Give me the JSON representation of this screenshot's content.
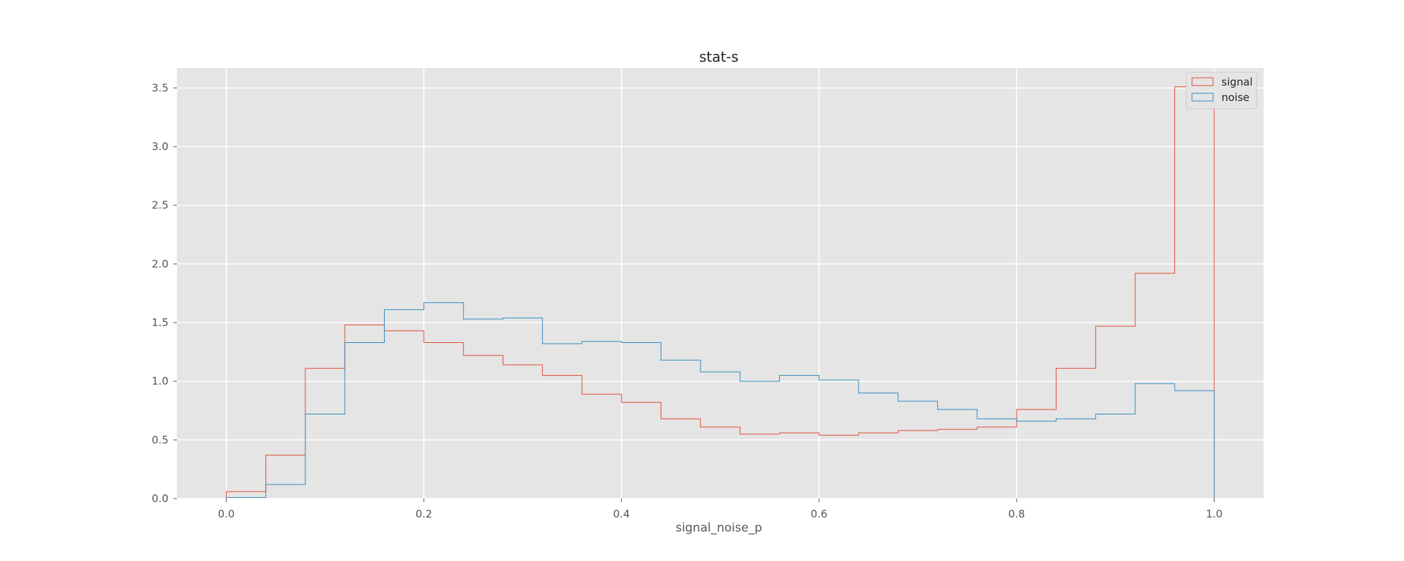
{
  "chart_data": {
    "type": "histogram",
    "title": "stat-s",
    "xlabel": "signal_noise_p",
    "ylabel": "",
    "xlim": [
      -0.05,
      1.05
    ],
    "ylim": [
      0,
      3.67
    ],
    "xticks": [
      0.0,
      0.2,
      0.4,
      0.6,
      0.8,
      1.0
    ],
    "xtick_labels": [
      "0.0",
      "0.2",
      "0.4",
      "0.6",
      "0.8",
      "1.0"
    ],
    "yticks": [
      0.0,
      0.5,
      1.0,
      1.5,
      2.0,
      2.5,
      3.0,
      3.5
    ],
    "ytick_labels": [
      "0.0",
      "0.5",
      "1.0",
      "1.5",
      "2.0",
      "2.5",
      "3.0",
      "3.5"
    ],
    "grid": true,
    "legend_position": "top-right",
    "bin_edges": [
      0.0,
      0.04,
      0.08,
      0.12,
      0.16,
      0.2,
      0.24,
      0.28,
      0.32,
      0.36,
      0.4,
      0.44,
      0.48,
      0.52,
      0.56,
      0.6,
      0.64,
      0.68,
      0.72,
      0.76,
      0.8,
      0.84,
      0.88,
      0.92,
      0.96,
      1.0
    ],
    "series": [
      {
        "name": "signal",
        "color": "#E24A33",
        "values": [
          0.06,
          0.37,
          1.11,
          1.48,
          1.43,
          1.33,
          1.22,
          1.14,
          1.05,
          0.89,
          0.82,
          0.68,
          0.61,
          0.55,
          0.56,
          0.54,
          0.56,
          0.58,
          0.59,
          0.61,
          0.76,
          1.11,
          1.47,
          1.92,
          3.51
        ]
      },
      {
        "name": "noise",
        "color": "#348ABD",
        "values": [
          0.01,
          0.12,
          0.72,
          1.33,
          1.61,
          1.67,
          1.53,
          1.54,
          1.32,
          1.34,
          1.33,
          1.18,
          1.08,
          1.0,
          1.05,
          1.01,
          0.9,
          0.83,
          0.76,
          0.68,
          0.66,
          0.68,
          0.72,
          0.98,
          0.92
        ]
      }
    ]
  }
}
